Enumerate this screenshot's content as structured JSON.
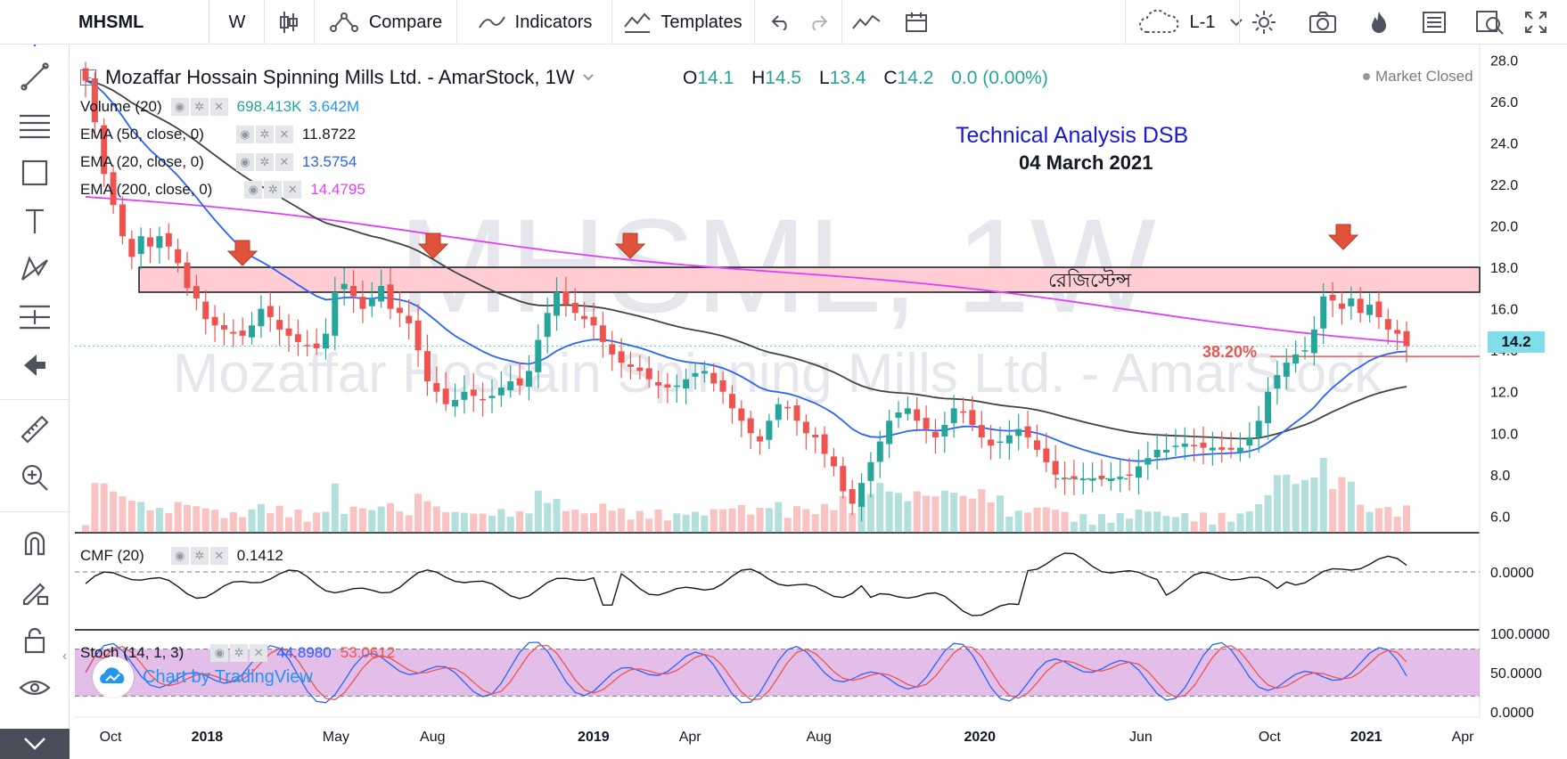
{
  "toolbar": {
    "symbol": "MHSML",
    "interval": "W",
    "compare_label": "Compare",
    "indicators_label": "Indicators",
    "templates_label": "Templates",
    "layout_label": "L-1"
  },
  "legend": {
    "title": "Mozaffar Hossain Spinning Mills Ltd. - AmarStock, 1W",
    "ohlc": {
      "o_key": "O",
      "o": "14.1",
      "h_key": "H",
      "h": "14.5",
      "l_key": "L",
      "l": "13.4",
      "c_key": "C",
      "c": "14.2",
      "change": "0.0 (0.00%)"
    },
    "market_status": "Market Closed",
    "volume": {
      "name": "Volume (20)",
      "v1": "698.413K",
      "v2": "3.642M"
    },
    "ema50": {
      "name": "EMA (50, close, 0)",
      "value": "11.8722"
    },
    "ema20": {
      "name": "EMA (20, close, 0)",
      "value": "13.5754"
    },
    "ema200": {
      "name": "EMA (200, close, 0)",
      "value": "14.4795"
    },
    "cmf": {
      "name": "CMF (20)",
      "value": "0.1412"
    },
    "stoch": {
      "name": "Stoch (14, 1, 3)",
      "k": "44.8980",
      "d": "53.0612"
    }
  },
  "annotations": {
    "heading": "Technical Analysis DSB",
    "date": "04 March 2021",
    "resistance_label": "রেজিস্টেন্স",
    "fib_label": "38.20%"
  },
  "watermark": {
    "big": "MHSML, 1W",
    "small": "Mozaffar Hossain Spinning Mills Ltd. - AmarStock"
  },
  "attribution": "Chart by TradingView",
  "current_price": "14.2",
  "colors": {
    "up": "#26a69a",
    "down": "#ef5350",
    "ema20": "#2962ff",
    "ema50": "#424242",
    "ema200": "#e040fb",
    "resistance_fill": "#ffcdd2",
    "stoch_band": "#ce93d8"
  },
  "chart_data": {
    "type": "candlestick",
    "price_axis": {
      "ticks": [
        "28.0",
        "26.0",
        "24.0",
        "22.0",
        "20.0",
        "18.0",
        "16.0",
        "14.0",
        "12.0",
        "10.0",
        "8.0",
        "6.0"
      ],
      "ylim": [
        5.2,
        28.4
      ]
    },
    "cmf_axis": {
      "ticks": [
        "0.0000"
      ]
    },
    "stoch_axis": {
      "ticks": [
        "100.0000",
        "50.0000",
        "0.0000"
      ],
      "ylim": [
        0,
        100
      ]
    },
    "x_ticks": [
      {
        "label": "Oct",
        "t": 0.5,
        "bold": false
      },
      {
        "label": "2018",
        "t": 3.5,
        "bold": true
      },
      {
        "label": "May",
        "t": 7.5,
        "bold": false
      },
      {
        "label": "Aug",
        "t": 10.5,
        "bold": false
      },
      {
        "label": "2019",
        "t": 15.5,
        "bold": true
      },
      {
        "label": "Apr",
        "t": 18.5,
        "bold": false
      },
      {
        "label": "Aug",
        "t": 22.5,
        "bold": false
      },
      {
        "label": "2020",
        "t": 27.5,
        "bold": true
      },
      {
        "label": "Jun",
        "t": 32.5,
        "bold": false
      },
      {
        "label": "Oct",
        "t": 36.5,
        "bold": false
      },
      {
        "label": "2021",
        "t": 39.5,
        "bold": true
      },
      {
        "label": "Apr",
        "t": 42.5,
        "bold": false
      }
    ],
    "weekly_closes_approx": [
      27.0,
      25.0,
      22.5,
      21.0,
      19.5,
      18.5,
      19.5,
      19.0,
      19.5,
      19.0,
      18.2,
      17.0,
      16.5,
      15.5,
      15.2,
      15.0,
      14.8,
      14.7,
      15.2,
      16.0,
      15.6,
      15.0,
      14.7,
      14.4,
      14.2,
      14.1,
      14.8,
      16.8,
      17.2,
      16.6,
      16.0,
      16.5,
      17.1,
      16.0,
      15.8,
      15.3,
      14.0,
      12.5,
      12.0,
      11.4,
      11.6,
      12.0,
      11.8,
      11.6,
      11.8,
      12.2,
      12.5,
      12.3,
      13.0,
      14.5,
      15.8,
      16.8,
      16.2,
      15.8,
      15.5,
      15.2,
      14.4,
      13.8,
      13.4,
      13.2,
      13.0,
      12.6,
      12.3,
      12.2,
      12.3,
      12.6,
      12.9,
      13.0,
      12.4,
      12.0,
      11.2,
      10.6,
      10.0,
      9.6,
      10.6,
      11.4,
      11.2,
      10.6,
      10.0,
      9.8,
      9.0,
      8.4,
      7.2,
      6.6,
      7.6,
      8.6,
      9.6,
      10.6,
      11.0,
      11.2,
      10.6,
      10.2,
      9.8,
      10.4,
      11.2,
      11.0,
      10.4,
      9.8,
      9.4,
      9.6,
      9.9,
      10.2,
      9.8,
      9.2,
      8.6,
      8.0,
      7.8,
      7.8,
      7.8,
      7.8,
      7.8,
      7.8,
      7.9,
      8.0,
      8.4,
      8.8,
      9.2,
      9.2,
      9.4,
      9.5,
      9.4,
      9.3,
      9.3,
      9.2,
      9.2,
      9.3,
      9.8,
      10.6,
      12.0,
      12.8,
      13.4,
      13.8,
      14.0,
      15.0,
      16.6,
      16.4,
      16.0,
      16.5,
      15.8,
      16.2,
      15.6,
      15.0,
      14.8,
      14.2
    ],
    "resistance_zone": [
      16.8,
      18.0
    ],
    "fib_level": {
      "label": "38.20%",
      "price": 13.7
    }
  }
}
